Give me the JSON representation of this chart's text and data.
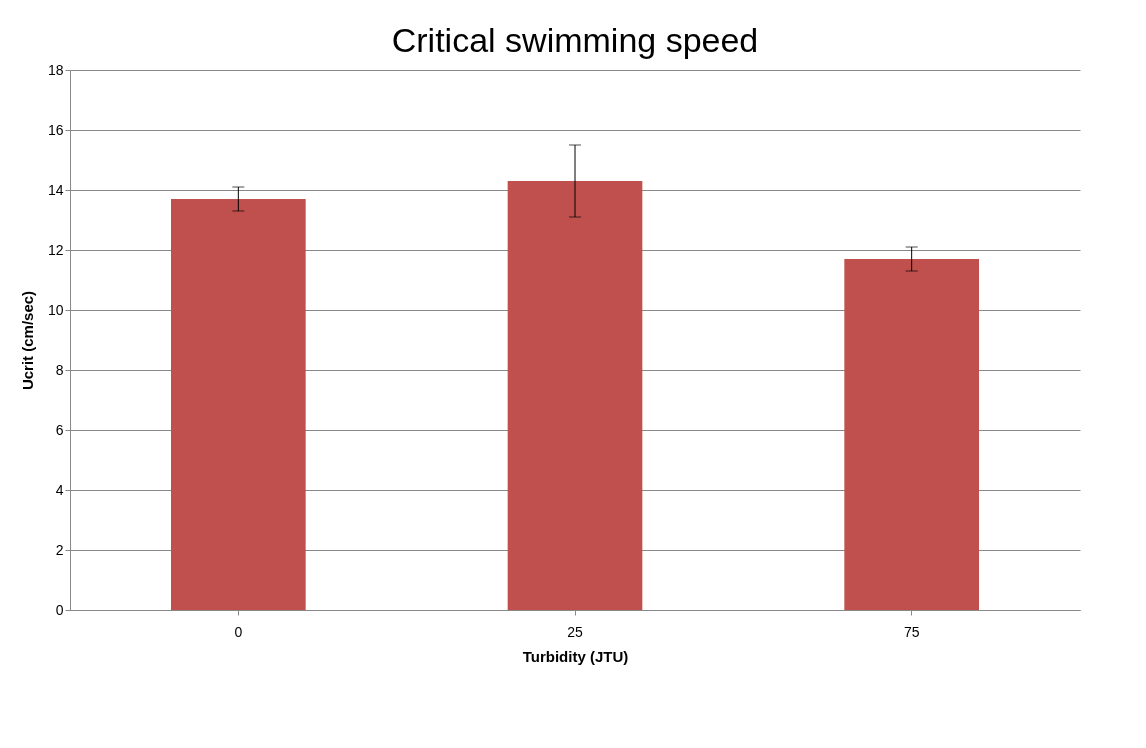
{
  "chart_data": {
    "type": "bar",
    "title": "Critical swimming speed",
    "xlabel": "Turbidity (JTU)",
    "ylabel": "Ucrit (cm/sec)",
    "categories": [
      "0",
      "25",
      "75"
    ],
    "values": [
      13.7,
      14.3,
      11.7
    ],
    "errors": [
      0.4,
      1.2,
      0.4
    ],
    "color": "#c0504d",
    "ylim": [
      0,
      18
    ],
    "yticks": [
      0,
      2,
      4,
      6,
      8,
      10,
      12,
      14,
      16,
      18
    ],
    "grid": "y"
  }
}
